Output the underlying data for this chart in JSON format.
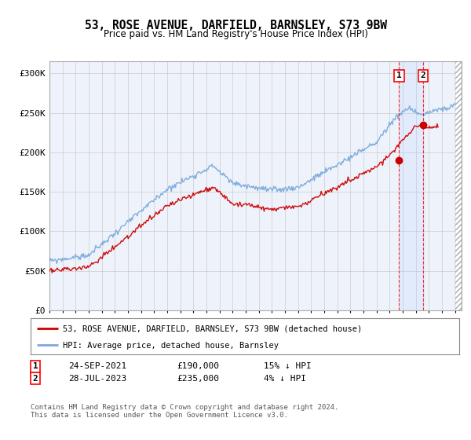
{
  "title": "53, ROSE AVENUE, DARFIELD, BARNSLEY, S73 9BW",
  "subtitle": "Price paid vs. HM Land Registry's House Price Index (HPI)",
  "ylabel_ticks": [
    "£0",
    "£50K",
    "£100K",
    "£150K",
    "£200K",
    "£250K",
    "£300K"
  ],
  "ytick_vals": [
    0,
    50000,
    100000,
    150000,
    200000,
    250000,
    300000
  ],
  "ylim": [
    0,
    315000
  ],
  "xlim_start": 1995.0,
  "xlim_end": 2026.5,
  "hpi_color": "#7aaadd",
  "price_color": "#cc0000",
  "marker1_date": 2021.73,
  "marker1_price": 190000,
  "marker2_date": 2023.57,
  "marker2_price": 235000,
  "legend_label1": "53, ROSE AVENUE, DARFIELD, BARNSLEY, S73 9BW (detached house)",
  "legend_label2": "HPI: Average price, detached house, Barnsley",
  "footer": "Contains HM Land Registry data © Crown copyright and database right 2024.\nThis data is licensed under the Open Government Licence v3.0.",
  "background_color": "#ffffff",
  "plot_bg_color": "#eef2fb",
  "grid_color": "#bbbbbb"
}
